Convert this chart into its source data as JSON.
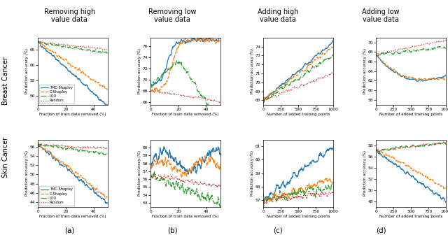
{
  "col_titles": [
    "Removing high\nvalue data",
    "Removing low\nvalue data",
    "Adding high\nvalue data",
    "Adding low\nvalue data"
  ],
  "row_titles": [
    "Breast Cancer",
    "Skin Cancer"
  ],
  "subplot_labels": [
    "(a)",
    "(b)",
    "(c)",
    "(d)"
  ],
  "legend_entries": [
    "TMC-Shapley",
    "G-Shapley",
    "LOO",
    "Random"
  ],
  "line_colors": [
    "#1f77b4",
    "#ff7f0e",
    "#2ca02c",
    "#d62728"
  ],
  "line_styles": [
    "-",
    "--",
    "-.",
    ":"
  ],
  "xlabel_remove": "Fraction of train data removed (%)",
  "xlabel_add": "Number of added training points",
  "ylabel": "Prediction accuracy (%)",
  "plots": {
    "bc_remove_high": {
      "ylim": [
        47,
        69
      ],
      "yticks": [
        50,
        55,
        60,
        65
      ],
      "xlim": [
        0,
        50
      ],
      "xticks": [
        0,
        20,
        40
      ]
    },
    "bc_remove_low": {
      "ylim": [
        65.5,
        77.5
      ],
      "yticks": [
        66,
        68,
        70,
        72,
        74,
        76
      ],
      "xlim": [
        0,
        50
      ],
      "xticks": [
        0,
        20,
        40
      ]
    },
    "bc_add_high": {
      "ylim": [
        67.5,
        75
      ],
      "yticks": [
        68,
        69,
        70,
        71,
        72,
        73,
        74
      ],
      "xlim": [
        0,
        1000
      ],
      "xticks": [
        0,
        250,
        500,
        750,
        1000
      ]
    },
    "bc_add_low": {
      "ylim": [
        57,
        71
      ],
      "yticks": [
        58,
        60,
        62,
        64,
        66,
        68,
        70
      ],
      "xlim": [
        0,
        1000
      ],
      "xticks": [
        0,
        250,
        500,
        750,
        1000
      ]
    },
    "sc_remove_high": {
      "ylim": [
        43,
        57.5
      ],
      "yticks": [
        44,
        46,
        48,
        50,
        52,
        54,
        56
      ],
      "xlim": [
        0,
        50
      ],
      "xticks": [
        0,
        20,
        40
      ]
    },
    "sc_remove_low": {
      "ylim": [
        52.5,
        61
      ],
      "yticks": [
        53,
        54,
        55,
        56,
        57,
        58,
        59,
        60
      ],
      "xlim": [
        0,
        50
      ],
      "xticks": [
        0,
        20,
        40
      ]
    },
    "sc_add_high": {
      "ylim": [
        56.5,
        61.5
      ],
      "yticks": [
        57,
        58,
        59,
        60,
        61
      ],
      "xlim": [
        0,
        1000
      ],
      "xticks": [
        0,
        250,
        500,
        750,
        1000
      ]
    },
    "sc_add_low": {
      "ylim": [
        47,
        59
      ],
      "yticks": [
        48,
        50,
        52,
        54,
        56,
        58
      ],
      "xlim": [
        0,
        1000
      ],
      "xticks": [
        0,
        250,
        500,
        750,
        1000
      ]
    }
  }
}
